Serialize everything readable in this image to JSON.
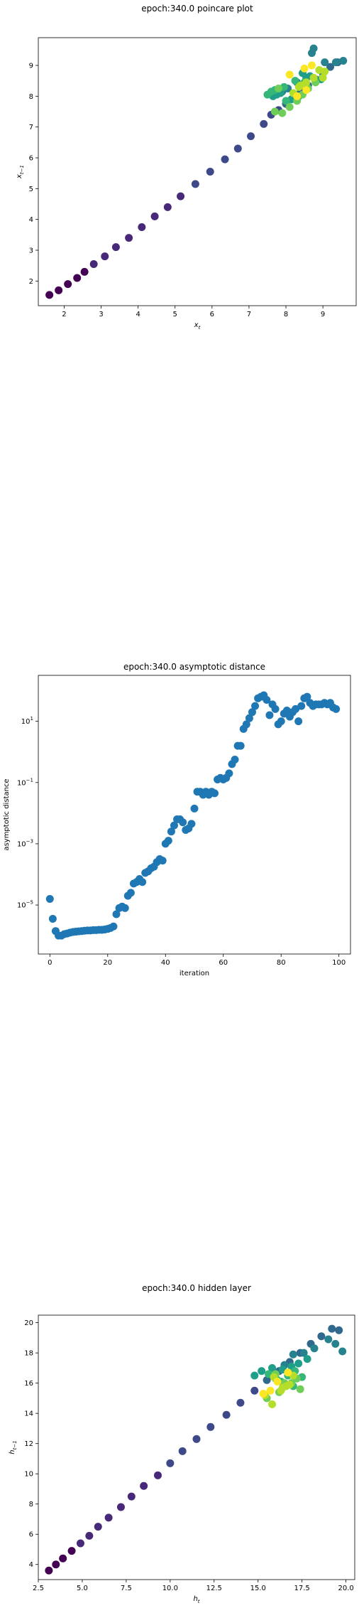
{
  "chart_data": [
    {
      "type": "scatter",
      "title": "epoch:340.0 poincare plot",
      "xlabel": "x_t",
      "ylabel": "x_{t-1}",
      "xlim": [
        1.3,
        9.9
      ],
      "ylim": [
        1.2,
        9.9
      ],
      "xticks": [
        2,
        3,
        4,
        5,
        6,
        7,
        8,
        9
      ],
      "yticks": [
        2,
        3,
        4,
        5,
        6,
        7,
        8,
        9
      ],
      "color_scale": "viridis (point index)",
      "x": [
        1.6,
        1.85,
        2.1,
        2.35,
        2.55,
        2.8,
        3.1,
        3.4,
        3.75,
        4.1,
        4.45,
        4.8,
        5.15,
        5.55,
        5.95,
        6.35,
        6.7,
        7.05,
        7.4,
        7.6,
        7.8,
        8.0,
        8.2,
        8.4,
        8.6,
        8.8,
        9.0,
        9.2,
        9.4,
        9.55,
        8.7,
        8.75,
        9.05,
        9.35,
        7.9,
        8.05,
        8.3,
        8.55,
        7.65,
        7.75,
        7.85,
        8.45,
        8.65,
        8.95,
        8.15,
        8.35,
        7.7,
        7.95,
        8.25,
        8.5,
        8.0,
        7.5,
        7.6,
        7.8,
        7.7,
        7.9,
        8.1,
        8.3,
        8.45,
        8.6,
        8.8,
        9.0,
        9.05,
        8.4,
        8.2,
        8.55,
        8.75,
        8.9,
        8.35,
        8.55,
        8.7,
        8.5,
        8.1,
        8.3
      ],
      "y": [
        1.55,
        1.7,
        1.9,
        2.1,
        2.3,
        2.55,
        2.8,
        3.1,
        3.4,
        3.75,
        4.1,
        4.4,
        4.75,
        5.15,
        5.55,
        5.95,
        6.3,
        6.7,
        7.1,
        7.4,
        7.55,
        7.75,
        7.95,
        8.15,
        8.35,
        8.55,
        8.75,
        8.95,
        9.1,
        9.15,
        9.4,
        9.55,
        9.1,
        9.1,
        8.15,
        8.25,
        8.45,
        8.6,
        8.0,
        8.05,
        8.1,
        8.75,
        8.65,
        8.55,
        7.9,
        8.0,
        8.2,
        8.3,
        8.5,
        8.45,
        7.85,
        8.05,
        8.15,
        8.25,
        7.5,
        7.45,
        7.65,
        7.85,
        8.05,
        8.25,
        8.45,
        8.6,
        8.8,
        8.35,
        8.1,
        8.45,
        8.6,
        8.85,
        8.3,
        8.2,
        9.0,
        8.9,
        8.7,
        8.0
      ],
      "series_color_note": "early points purple, later points blue-green-yellow"
    },
    {
      "type": "scatter",
      "title": "epoch:340.0 asymptotic distance",
      "xlabel": "iteration",
      "ylabel": "asymptotic distance",
      "xlim": [
        -4,
        104
      ],
      "yscale": "log",
      "ylim_exp": [
        -6.6,
        2.5
      ],
      "xticks": [
        0,
        20,
        40,
        60,
        80,
        100
      ],
      "yticks_exp": [
        -5,
        -3,
        -1,
        1
      ],
      "ytick_labels": [
        "10^-5",
        "10^-3",
        "10^-1",
        "10^1"
      ],
      "color": "#1f77b4",
      "x": [
        0,
        1,
        2,
        3,
        4,
        5,
        6,
        7,
        8,
        9,
        10,
        11,
        12,
        13,
        14,
        15,
        16,
        17,
        18,
        19,
        20,
        21,
        22,
        23,
        24,
        25,
        26,
        27,
        28,
        29,
        30,
        31,
        32,
        33,
        34,
        35,
        36,
        37,
        38,
        39,
        40,
        41,
        42,
        43,
        44,
        45,
        46,
        47,
        48,
        49,
        50,
        51,
        52,
        53,
        54,
        55,
        56,
        57,
        58,
        59,
        60,
        61,
        62,
        63,
        64,
        65,
        66,
        67,
        68,
        69,
        70,
        71,
        72,
        73,
        74,
        75,
        76,
        77,
        78,
        79,
        80,
        81,
        82,
        83,
        84,
        85,
        86,
        87,
        88,
        89,
        90,
        91,
        92,
        93,
        94,
        95,
        96,
        97,
        98,
        99
      ],
      "log10_y": [
        -4.8,
        -5.45,
        -5.85,
        -6.0,
        -6.0,
        -5.95,
        -5.93,
        -5.9,
        -5.88,
        -5.87,
        -5.86,
        -5.85,
        -5.84,
        -5.83,
        -5.83,
        -5.82,
        -5.82,
        -5.81,
        -5.81,
        -5.8,
        -5.78,
        -5.75,
        -5.7,
        -5.3,
        -5.1,
        -5.05,
        -5.1,
        -4.7,
        -4.6,
        -4.3,
        -4.25,
        -4.15,
        -4.25,
        -3.95,
        -3.9,
        -3.8,
        -3.75,
        -3.6,
        -3.5,
        -3.55,
        -3.0,
        -2.9,
        -2.6,
        -2.4,
        -2.2,
        -2.2,
        -2.3,
        -2.55,
        -2.5,
        -2.35,
        -1.85,
        -1.3,
        -1.3,
        -1.4,
        -1.3,
        -1.4,
        -1.3,
        -1.35,
        -0.9,
        -0.85,
        -0.9,
        -0.85,
        -0.7,
        -0.4,
        -0.25,
        0.2,
        0.2,
        0.75,
        0.9,
        1.1,
        1.3,
        1.5,
        1.75,
        1.8,
        1.85,
        1.7,
        1.2,
        1.55,
        1.4,
        0.9,
        1.0,
        1.25,
        1.35,
        1.15,
        1.3,
        1.4,
        1.0,
        1.5,
        1.75,
        1.8,
        1.6,
        1.5,
        1.55,
        1.55,
        1.55,
        1.6,
        1.55,
        1.6,
        1.45,
        1.4
      ]
    },
    {
      "type": "scatter",
      "title": "epoch:340.0 hidden layer",
      "xlabel": "h_t",
      "ylabel": "h_{t-1}",
      "xlim": [
        2.5,
        20.5
      ],
      "ylim": [
        3.0,
        20.5
      ],
      "xticks": [
        2.5,
        5.0,
        7.5,
        10.0,
        12.5,
        15.0,
        17.5,
        20.0
      ],
      "xtick_labels": [
        "2.5",
        "5.0",
        "7.5",
        "10.0",
        "12.5",
        "15.0",
        "17.5",
        "20.0"
      ],
      "yticks": [
        4,
        6,
        8,
        10,
        12,
        14,
        16,
        18,
        20
      ],
      "color_scale": "viridis (point index)",
      "x": [
        3.1,
        3.5,
        3.9,
        4.4,
        4.9,
        5.4,
        5.9,
        6.5,
        7.2,
        7.8,
        8.5,
        9.3,
        10.0,
        10.7,
        11.5,
        12.3,
        13.2,
        14.0,
        14.8,
        15.5,
        16.2,
        16.8,
        17.4,
        18.0,
        18.6,
        19.2,
        19.6,
        19.8,
        19.4,
        19.0,
        18.2,
        17.6,
        17.0,
        16.5,
        15.8,
        15.2,
        14.8,
        16.0,
        16.4,
        16.9,
        17.3,
        17.8,
        16.3,
        16.7,
        17.1,
        17.5,
        15.6,
        16.1,
        16.6,
        17.0,
        15.5,
        16.2,
        16.9,
        17.4,
        16.0,
        16.5,
        17.2,
        15.4,
        15.8,
        16.3,
        16.8,
        17.0,
        16.4,
        15.9,
        16.6,
        15.3,
        16.1,
        16.7,
        15.7
      ],
      "y": [
        3.6,
        4.0,
        4.4,
        4.9,
        5.4,
        5.9,
        6.5,
        7.1,
        7.8,
        8.5,
        9.2,
        9.9,
        10.7,
        11.5,
        12.3,
        13.1,
        13.9,
        14.7,
        15.5,
        16.2,
        16.8,
        17.4,
        18.0,
        18.6,
        19.1,
        19.6,
        19.5,
        18.1,
        18.6,
        18.9,
        18.3,
        18.0,
        17.9,
        17.2,
        17.0,
        16.8,
        16.5,
        16.3,
        16.9,
        17.1,
        17.3,
        17.6,
        16.1,
        16.5,
        16.8,
        16.4,
        16.6,
        16.2,
        15.9,
        15.8,
        15.0,
        15.4,
        16.0,
        15.6,
        16.6,
        16.0,
        16.3,
        15.2,
        14.6,
        15.5,
        15.9,
        16.5,
        15.7,
        16.4,
        15.8,
        15.3,
        16.1,
        16.7,
        15.5
      ]
    }
  ]
}
